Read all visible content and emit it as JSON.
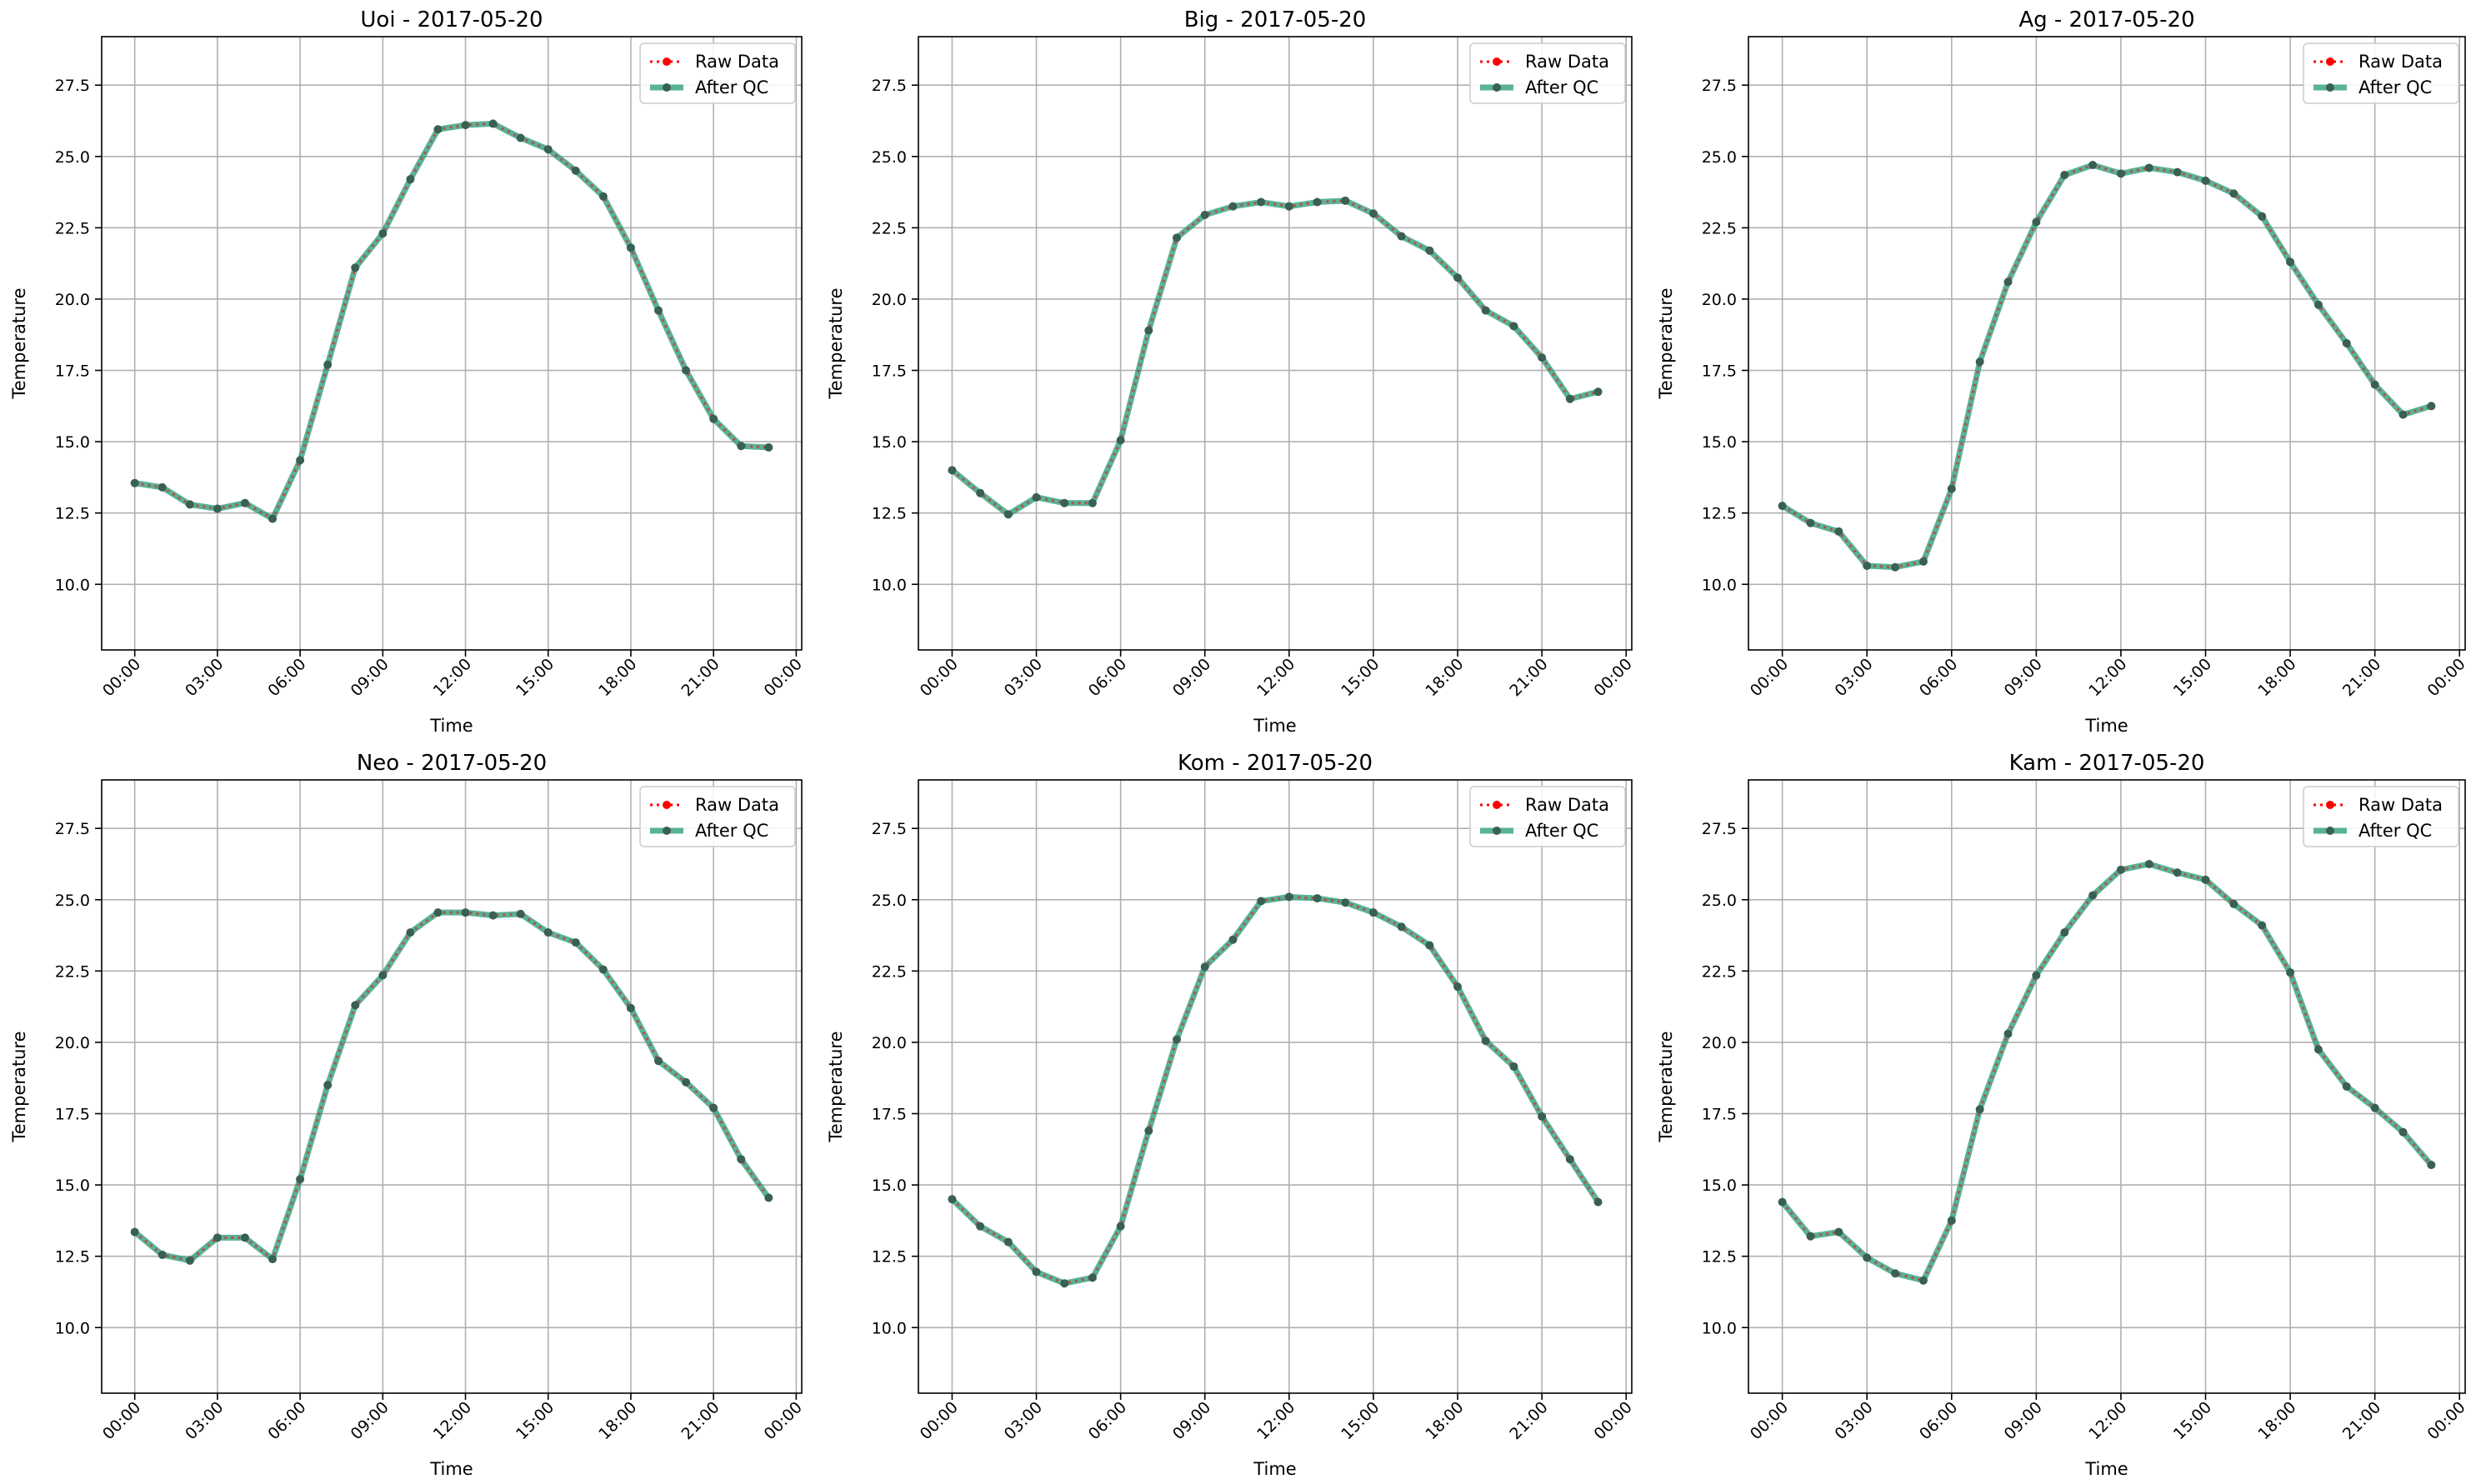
{
  "chart_data": [
    {
      "type": "line",
      "title": "Uoi - 2017-05-20",
      "xlabel": "Time",
      "ylabel": "Temperature",
      "xticks": [
        "00:00",
        "03:00",
        "06:00",
        "09:00",
        "12:00",
        "15:00",
        "18:00",
        "21:00",
        "00:00"
      ],
      "yticks": [
        "10.0",
        "12.5",
        "15.0",
        "17.5",
        "20.0",
        "22.5",
        "25.0",
        "27.5"
      ],
      "xlim": [
        -1.2,
        24.2
      ],
      "ylim": [
        7.7,
        29.2
      ],
      "legend": {
        "position": "top-right",
        "entries": [
          "Raw Data",
          "After QC"
        ]
      },
      "grid": true,
      "x": [
        0,
        1,
        2,
        3,
        4,
        5,
        6,
        7,
        8,
        9,
        10,
        11,
        12,
        13,
        14,
        15,
        16,
        17,
        18,
        19,
        20,
        21,
        22,
        23
      ],
      "series": [
        {
          "name": "Raw Data",
          "color": "#ff0000",
          "values": [
            13.55,
            13.4,
            12.8,
            12.65,
            12.85,
            12.3,
            14.35,
            17.7,
            21.1,
            22.3,
            24.2,
            25.95,
            26.1,
            26.15,
            25.65,
            25.25,
            24.5,
            23.6,
            21.8,
            19.6,
            17.5,
            15.8,
            14.85,
            14.8
          ]
        },
        {
          "name": "After QC",
          "color": "#2a9d7a",
          "values": [
            13.55,
            13.4,
            12.8,
            12.65,
            12.85,
            12.3,
            14.35,
            17.7,
            21.1,
            22.3,
            24.2,
            25.95,
            26.1,
            26.15,
            25.65,
            25.25,
            24.5,
            23.6,
            21.8,
            19.6,
            17.5,
            15.8,
            14.85,
            14.8
          ]
        }
      ]
    },
    {
      "type": "line",
      "title": "Big - 2017-05-20",
      "xlabel": "Time",
      "ylabel": "Temperature",
      "xticks": [
        "00:00",
        "03:00",
        "06:00",
        "09:00",
        "12:00",
        "15:00",
        "18:00",
        "21:00",
        "00:00"
      ],
      "yticks": [
        "10.0",
        "12.5",
        "15.0",
        "17.5",
        "20.0",
        "22.5",
        "25.0",
        "27.5"
      ],
      "xlim": [
        -1.2,
        24.2
      ],
      "ylim": [
        7.7,
        29.2
      ],
      "legend": {
        "position": "top-right",
        "entries": [
          "Raw Data",
          "After QC"
        ]
      },
      "grid": true,
      "x": [
        0,
        1,
        2,
        3,
        4,
        5,
        6,
        7,
        8,
        9,
        10,
        11,
        12,
        13,
        14,
        15,
        16,
        17,
        18,
        19,
        20,
        21,
        22,
        23
      ],
      "series": [
        {
          "name": "Raw Data",
          "color": "#ff0000",
          "values": [
            14.0,
            13.2,
            12.45,
            13.05,
            12.85,
            12.85,
            15.05,
            18.9,
            22.15,
            22.95,
            23.25,
            23.4,
            23.25,
            23.4,
            23.45,
            23.0,
            22.2,
            21.7,
            20.75,
            19.6,
            19.05,
            17.95,
            16.5,
            16.75
          ]
        },
        {
          "name": "After QC",
          "color": "#2a9d7a",
          "values": [
            14.0,
            13.2,
            12.45,
            13.05,
            12.85,
            12.85,
            15.05,
            18.9,
            22.15,
            22.95,
            23.25,
            23.4,
            23.25,
            23.4,
            23.45,
            23.0,
            22.2,
            21.7,
            20.75,
            19.6,
            19.05,
            17.95,
            16.5,
            16.75
          ]
        }
      ]
    },
    {
      "type": "line",
      "title": "Ag - 2017-05-20",
      "xlabel": "Time",
      "ylabel": "Temperature",
      "xticks": [
        "00:00",
        "03:00",
        "06:00",
        "09:00",
        "12:00",
        "15:00",
        "18:00",
        "21:00",
        "00:00"
      ],
      "yticks": [
        "10.0",
        "12.5",
        "15.0",
        "17.5",
        "20.0",
        "22.5",
        "25.0",
        "27.5"
      ],
      "xlim": [
        -1.2,
        24.2
      ],
      "ylim": [
        7.7,
        29.2
      ],
      "legend": {
        "position": "top-right",
        "entries": [
          "Raw Data",
          "After QC"
        ]
      },
      "grid": true,
      "x": [
        0,
        1,
        2,
        3,
        4,
        5,
        6,
        7,
        8,
        9,
        10,
        11,
        12,
        13,
        14,
        15,
        16,
        17,
        18,
        19,
        20,
        21,
        22,
        23
      ],
      "series": [
        {
          "name": "Raw Data",
          "color": "#ff0000",
          "values": [
            12.75,
            12.15,
            11.85,
            10.65,
            10.6,
            10.8,
            13.35,
            17.8,
            20.6,
            22.7,
            24.35,
            24.7,
            24.4,
            24.6,
            24.45,
            24.15,
            23.7,
            22.9,
            21.3,
            19.8,
            18.45,
            17.0,
            15.95,
            16.25
          ]
        },
        {
          "name": "After QC",
          "color": "#2a9d7a",
          "values": [
            12.75,
            12.15,
            11.85,
            10.65,
            10.6,
            10.8,
            13.35,
            17.8,
            20.6,
            22.7,
            24.35,
            24.7,
            24.4,
            24.6,
            24.45,
            24.15,
            23.7,
            22.9,
            21.3,
            19.8,
            18.45,
            17.0,
            15.95,
            16.25
          ]
        }
      ]
    },
    {
      "type": "line",
      "title": "Neo - 2017-05-20",
      "xlabel": "Time",
      "ylabel": "Temperature",
      "xticks": [
        "00:00",
        "03:00",
        "06:00",
        "09:00",
        "12:00",
        "15:00",
        "18:00",
        "21:00",
        "00:00"
      ],
      "yticks": [
        "10.0",
        "12.5",
        "15.0",
        "17.5",
        "20.0",
        "22.5",
        "25.0",
        "27.5"
      ],
      "xlim": [
        -1.2,
        24.2
      ],
      "ylim": [
        7.7,
        29.2
      ],
      "legend": {
        "position": "top-right",
        "entries": [
          "Raw Data",
          "After QC"
        ]
      },
      "grid": true,
      "x": [
        0,
        1,
        2,
        3,
        4,
        5,
        6,
        7,
        8,
        9,
        10,
        11,
        12,
        13,
        14,
        15,
        16,
        17,
        18,
        19,
        20,
        21,
        22,
        23
      ],
      "series": [
        {
          "name": "Raw Data",
          "color": "#ff0000",
          "values": [
            13.35,
            12.55,
            12.35,
            13.15,
            13.15,
            12.4,
            15.2,
            18.5,
            21.3,
            22.35,
            23.85,
            24.55,
            24.55,
            24.45,
            24.5,
            23.85,
            23.5,
            22.55,
            21.2,
            19.35,
            18.6,
            17.7,
            15.9,
            14.55
          ]
        },
        {
          "name": "After QC",
          "color": "#2a9d7a",
          "values": [
            13.35,
            12.55,
            12.35,
            13.15,
            13.15,
            12.4,
            15.2,
            18.5,
            21.3,
            22.35,
            23.85,
            24.55,
            24.55,
            24.45,
            24.5,
            23.85,
            23.5,
            22.55,
            21.2,
            19.35,
            18.6,
            17.7,
            15.9,
            14.55
          ]
        }
      ]
    },
    {
      "type": "line",
      "title": "Kom - 2017-05-20",
      "xlabel": "Time",
      "ylabel": "Temperature",
      "xticks": [
        "00:00",
        "03:00",
        "06:00",
        "09:00",
        "12:00",
        "15:00",
        "18:00",
        "21:00",
        "00:00"
      ],
      "yticks": [
        "10.0",
        "12.5",
        "15.0",
        "17.5",
        "20.0",
        "22.5",
        "25.0",
        "27.5"
      ],
      "xlim": [
        -1.2,
        24.2
      ],
      "ylim": [
        7.7,
        29.2
      ],
      "legend": {
        "position": "top-right",
        "entries": [
          "Raw Data",
          "After QC"
        ]
      },
      "grid": true,
      "x": [
        0,
        1,
        2,
        3,
        4,
        5,
        6,
        7,
        8,
        9,
        10,
        11,
        12,
        13,
        14,
        15,
        16,
        17,
        18,
        19,
        20,
        21,
        22,
        23
      ],
      "series": [
        {
          "name": "Raw Data",
          "color": "#ff0000",
          "values": [
            14.5,
            13.55,
            13.0,
            11.95,
            11.55,
            11.75,
            13.55,
            16.9,
            20.1,
            22.65,
            23.6,
            24.95,
            25.1,
            25.05,
            24.9,
            24.55,
            24.05,
            23.4,
            21.95,
            20.05,
            19.15,
            17.4,
            15.9,
            14.4
          ]
        },
        {
          "name": "After QC",
          "color": "#2a9d7a",
          "values": [
            14.5,
            13.55,
            13.0,
            11.95,
            11.55,
            11.75,
            13.55,
            16.9,
            20.1,
            22.65,
            23.6,
            24.95,
            25.1,
            25.05,
            24.9,
            24.55,
            24.05,
            23.4,
            21.95,
            20.05,
            19.15,
            17.4,
            15.9,
            14.4
          ]
        }
      ]
    },
    {
      "type": "line",
      "title": "Kam - 2017-05-20",
      "xlabel": "Time",
      "ylabel": "Temperature",
      "xticks": [
        "00:00",
        "03:00",
        "06:00",
        "09:00",
        "12:00",
        "15:00",
        "18:00",
        "21:00",
        "00:00"
      ],
      "yticks": [
        "10.0",
        "12.5",
        "15.0",
        "17.5",
        "20.0",
        "22.5",
        "25.0",
        "27.5"
      ],
      "xlim": [
        -1.2,
        24.2
      ],
      "ylim": [
        7.7,
        29.2
      ],
      "legend": {
        "position": "top-right",
        "entries": [
          "Raw Data",
          "After QC"
        ]
      },
      "grid": true,
      "x": [
        0,
        1,
        2,
        3,
        4,
        5,
        6,
        7,
        8,
        9,
        10,
        11,
        12,
        13,
        14,
        15,
        16,
        17,
        18,
        19,
        20,
        21,
        22,
        23
      ],
      "series": [
        {
          "name": "Raw Data",
          "color": "#ff0000",
          "values": [
            14.4,
            13.2,
            13.35,
            12.45,
            11.9,
            11.65,
            13.75,
            17.65,
            20.3,
            22.35,
            23.85,
            25.15,
            26.05,
            26.25,
            25.95,
            25.7,
            24.85,
            24.1,
            22.45,
            19.75,
            18.45,
            17.7,
            16.85,
            15.7
          ]
        },
        {
          "name": "After QC",
          "color": "#2a9d7a",
          "values": [
            14.4,
            13.2,
            13.35,
            12.45,
            11.9,
            11.65,
            13.75,
            17.65,
            20.3,
            22.35,
            23.85,
            25.15,
            26.05,
            26.25,
            25.95,
            25.7,
            24.85,
            24.1,
            22.45,
            19.75,
            18.45,
            17.7,
            16.85,
            15.7
          ]
        }
      ]
    }
  ]
}
